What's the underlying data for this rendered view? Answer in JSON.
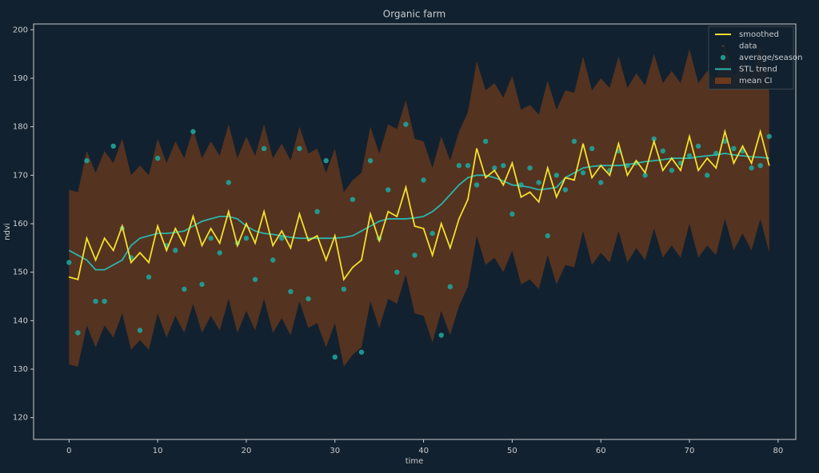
{
  "chart_data": {
    "type": "line",
    "title": "Organic farm",
    "xlabel": "time",
    "ylabel": "ndvi",
    "legend": "upper right",
    "xlim": [
      -4,
      82
    ],
    "ylim": [
      115.5,
      201.2
    ],
    "xticks": [
      0,
      10,
      20,
      30,
      40,
      50,
      60,
      70,
      80
    ],
    "yticks": [
      120,
      130,
      140,
      150,
      160,
      170,
      180,
      190,
      200
    ],
    "x": [
      0,
      1,
      2,
      3,
      4,
      5,
      6,
      7,
      8,
      9,
      10,
      11,
      12,
      13,
      14,
      15,
      16,
      17,
      18,
      19,
      20,
      21,
      22,
      23,
      24,
      25,
      26,
      27,
      28,
      29,
      30,
      31,
      32,
      33,
      34,
      35,
      36,
      37,
      38,
      39,
      40,
      41,
      42,
      43,
      44,
      45,
      46,
      47,
      48,
      49,
      50,
      51,
      52,
      53,
      54,
      55,
      56,
      57,
      58,
      59,
      60,
      61,
      62,
      63,
      64,
      65,
      66,
      67,
      68,
      69,
      70,
      71,
      72,
      73,
      74,
      75,
      76,
      77,
      78,
      79
    ],
    "series": [
      {
        "name": "smoothed",
        "type": "line",
        "color": "#f2e02a",
        "values": [
          149,
          148.5,
          157,
          152.5,
          157,
          154.5,
          159.5,
          152,
          154,
          152,
          159.5,
          154.5,
          159,
          155.5,
          161.5,
          155.5,
          159,
          156,
          162.5,
          155.5,
          160,
          156,
          162.5,
          155.5,
          158.5,
          155,
          162,
          156.5,
          157.5,
          152.5,
          157.5,
          148.5,
          151,
          152.5,
          162,
          156.5,
          162.5,
          161.5,
          167.5,
          159.5,
          159,
          153.5,
          160,
          155,
          161,
          165,
          175.5,
          169.5,
          171,
          168,
          172.5,
          165.5,
          166.5,
          164.5,
          171.5,
          165.5,
          169.5,
          169,
          176.5,
          169.5,
          172,
          170,
          176.5,
          170,
          173,
          170.5,
          177,
          171,
          173.5,
          171,
          178,
          171,
          173.5,
          171.5,
          179,
          172.5,
          176,
          172.5,
          179,
          172
        ]
      },
      {
        "name": "data",
        "type": "scatter",
        "color": "#c8783a",
        "values": [
          149,
          148.5,
          157,
          152.5,
          157,
          154.5,
          159.5,
          152,
          154,
          152,
          159.5,
          154.5,
          159,
          155.5,
          161.5,
          155.5,
          159,
          156,
          162.5,
          155.5,
          160,
          156,
          162.5,
          155.5,
          158.5,
          155,
          162,
          156.5,
          157.5,
          152.5,
          157.5,
          148.5,
          151,
          152.5,
          162,
          156.5,
          162.5,
          161.5,
          167.5,
          159.5,
          159,
          153.5,
          160,
          155,
          161,
          165,
          175.5,
          169.5,
          171,
          168,
          172.5,
          165.5,
          166.5,
          164.5,
          171.5,
          165.5,
          169.5,
          169,
          176.5,
          169.5,
          172,
          170,
          176.5,
          170,
          173,
          170.5,
          177,
          171,
          173.5,
          171,
          178,
          171,
          173.5,
          171.5,
          179,
          172.5,
          176,
          172.5,
          179,
          172
        ]
      },
      {
        "name": "average/season",
        "type": "scatter",
        "color": "#1fa39a",
        "values": [
          152,
          137.5,
          173,
          144,
          144,
          176,
          159,
          153,
          138,
          149,
          173.5,
          155.5,
          154.5,
          146.5,
          179,
          147.5,
          157,
          154,
          168.5,
          156,
          157,
          148.5,
          175.5,
          152.5,
          157,
          146,
          175.5,
          144.5,
          162.5,
          173,
          132.5,
          146.5,
          165,
          133.5,
          173,
          157,
          167,
          150,
          180.5,
          153.5,
          169,
          158,
          137,
          147,
          172,
          172,
          168,
          177,
          171.5,
          172,
          162,
          168,
          171.5,
          168.5,
          157.5,
          170,
          167,
          177,
          170.5,
          175.5,
          168.5,
          171,
          175,
          172,
          172.5,
          170,
          177.5,
          175,
          171,
          172.5,
          174,
          176,
          170,
          174.5,
          177,
          175.5,
          175,
          171.5,
          172,
          178
        ]
      },
      {
        "name": "STL trend",
        "type": "line",
        "color": "#2bb5ad",
        "values": [
          154.5,
          153.5,
          152.5,
          150.5,
          150.5,
          151.5,
          152.5,
          155.5,
          157,
          157.5,
          158,
          158,
          158.2,
          158.5,
          159.5,
          160.5,
          161,
          161.5,
          161.5,
          161,
          159.5,
          158.5,
          158,
          157.8,
          157.5,
          157.2,
          157,
          157,
          157,
          157,
          157,
          157.2,
          157.5,
          158.5,
          159.5,
          160.5,
          161,
          161,
          161,
          161.2,
          161.5,
          162.5,
          164,
          166,
          168,
          169.5,
          170,
          170,
          169.5,
          168.8,
          168,
          167.8,
          167.5,
          167,
          167.2,
          167.5,
          169.5,
          170.5,
          171.5,
          171.8,
          172,
          172,
          172,
          172.2,
          172.5,
          172.8,
          173,
          173.2,
          173.5,
          173.5,
          173.5,
          173.8,
          174,
          174.2,
          174.5,
          174.2,
          174,
          173.8,
          173.7,
          173.5
        ]
      },
      {
        "name": "mean CI",
        "type": "band",
        "color": "#6b3a1c",
        "upper": [
          167,
          166.5,
          175,
          170.5,
          175,
          172.5,
          177.5,
          170,
          172,
          170,
          177.5,
          172.5,
          177,
          173.5,
          179.5,
          173.5,
          177,
          174,
          180.5,
          173.5,
          178,
          174,
          180.5,
          173.5,
          176.5,
          173,
          180,
          174.5,
          175.5,
          170.5,
          175.5,
          166.5,
          169,
          170.5,
          180,
          174.5,
          180.5,
          179.5,
          185.5,
          177.5,
          177,
          171.5,
          178,
          173,
          179,
          183,
          193.5,
          187.5,
          189,
          186,
          190.5,
          183.5,
          184.5,
          182.5,
          189.5,
          183.5,
          187.5,
          187,
          194.5,
          187.5,
          190,
          188,
          194.5,
          188,
          191,
          188.5,
          195,
          189,
          191.5,
          189,
          196,
          189,
          191.5,
          189.5,
          197,
          190.5,
          194,
          190.5,
          197,
          190
        ],
        "lower": [
          131,
          130.5,
          139,
          134.5,
          139,
          136.5,
          141.5,
          134,
          136,
          134,
          141.5,
          136.5,
          141,
          137.5,
          143.5,
          137.5,
          141,
          138,
          144.5,
          137.5,
          142,
          138,
          144.5,
          137.5,
          140.5,
          137,
          144,
          138.5,
          139.5,
          134.5,
          139.5,
          130.5,
          133,
          134.5,
          144,
          138.5,
          144.5,
          143.5,
          149.5,
          141.5,
          141,
          135.5,
          142,
          137,
          143,
          147,
          157.5,
          151.5,
          153,
          150,
          154.5,
          147.5,
          148.5,
          146.5,
          153.5,
          147.5,
          151.5,
          151,
          158.5,
          151.5,
          154,
          152,
          158.5,
          152,
          155,
          152.5,
          159,
          153,
          155.5,
          153,
          160,
          153,
          155.5,
          153.5,
          161,
          154.5,
          158,
          154.5,
          161,
          154
        ]
      }
    ]
  }
}
